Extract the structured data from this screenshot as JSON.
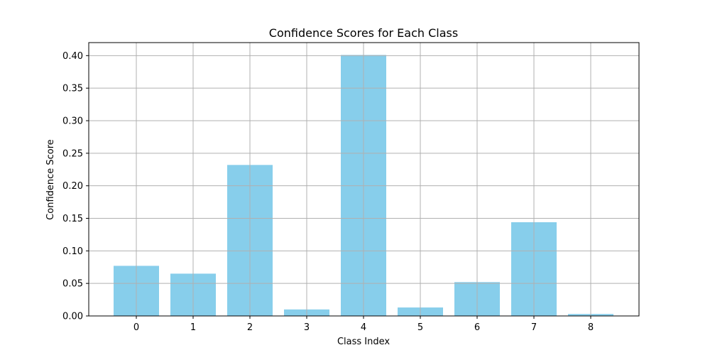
{
  "chart_data": {
    "type": "bar",
    "title": "Confidence Scores for Each Class",
    "xlabel": "Class Index",
    "ylabel": "Confidence Score",
    "categories": [
      "0",
      "1",
      "2",
      "3",
      "4",
      "5",
      "6",
      "7",
      "8"
    ],
    "values": [
      0.077,
      0.065,
      0.232,
      0.01,
      0.401,
      0.013,
      0.052,
      0.144,
      0.003
    ],
    "ylim": [
      0,
      0.42
    ],
    "yticks": [
      "0.00",
      "0.05",
      "0.10",
      "0.15",
      "0.20",
      "0.25",
      "0.30",
      "0.35",
      "0.40"
    ],
    "bar_color": "#87ceeb",
    "grid": true,
    "legend": "none"
  }
}
